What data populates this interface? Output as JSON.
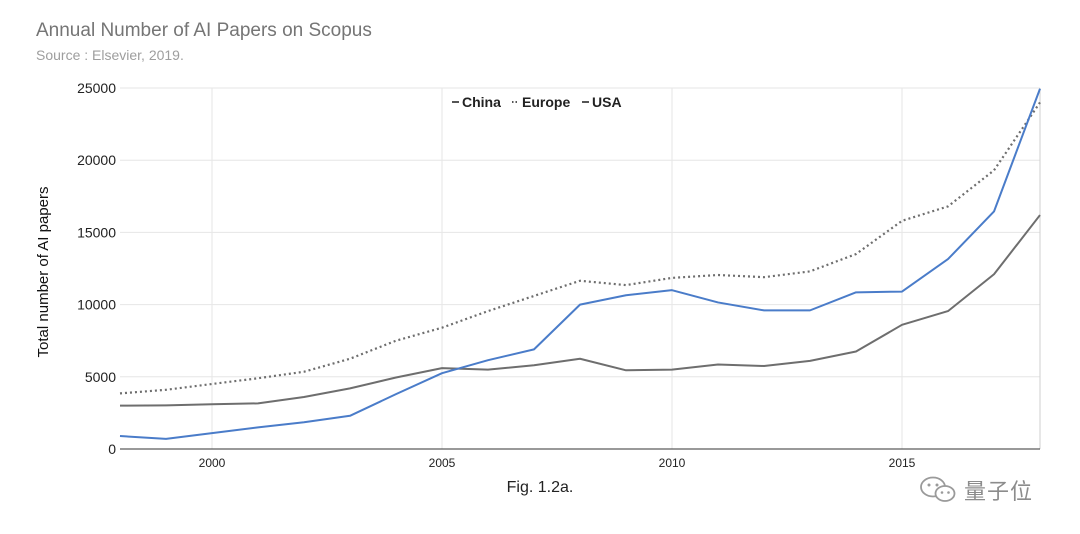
{
  "header": {
    "title": "Annual Number of AI Papers on Scopus",
    "subtitle": "Source : Elsevier, 2019."
  },
  "caption": "Fig. 1.2a.",
  "watermark": {
    "text": "量子位",
    "icon": "wechat-icon"
  },
  "colors": {
    "china": "#6e6e6e",
    "europe": "#6e6e6e",
    "usa": "#4a7cc9",
    "grid": "#e6e6e6"
  },
  "chart_data": {
    "type": "line",
    "title": "Annual Number of AI Papers on Scopus",
    "subtitle": "Source : Elsevier, 2019.",
    "xlabel": "",
    "ylabel": "Total number of AI papers",
    "xlim": [
      1998,
      2018
    ],
    "ylim": [
      0,
      25000
    ],
    "x_ticks": [
      "2000",
      "2005",
      "2010",
      "2015"
    ],
    "y_ticks": [
      "0",
      "5000",
      "10000",
      "15000",
      "20000",
      "25000"
    ],
    "grid": true,
    "legend_position": "top-center",
    "x": [
      1998,
      1999,
      2000,
      2001,
      2002,
      2003,
      2004,
      2005,
      2006,
      2007,
      2008,
      2009,
      2010,
      2011,
      2012,
      2013,
      2014,
      2015,
      2016,
      2017,
      2018
    ],
    "series": [
      {
        "name": "China",
        "style": "solid",
        "values": [
          3000,
          3020,
          3100,
          3160,
          3600,
          4200,
          4950,
          5600,
          5500,
          5800,
          6250,
          5450,
          5500,
          5850,
          5750,
          6100,
          6750,
          8600,
          9550,
          12100,
          16200
        ]
      },
      {
        "name": "Europe",
        "style": "dotted",
        "values": [
          3850,
          4100,
          4500,
          4900,
          5350,
          6250,
          7500,
          8400,
          9550,
          10600,
          11650,
          11350,
          11850,
          12050,
          11900,
          12300,
          13500,
          15800,
          16800,
          19300,
          24000
        ]
      },
      {
        "name": "USA",
        "style": "solid",
        "values": [
          900,
          700,
          1100,
          1500,
          1850,
          2300,
          3800,
          5250,
          6150,
          6900,
          10000,
          10650,
          11000,
          10150,
          9600,
          9600,
          10850,
          10900,
          13150,
          16450,
          24950
        ]
      }
    ]
  }
}
